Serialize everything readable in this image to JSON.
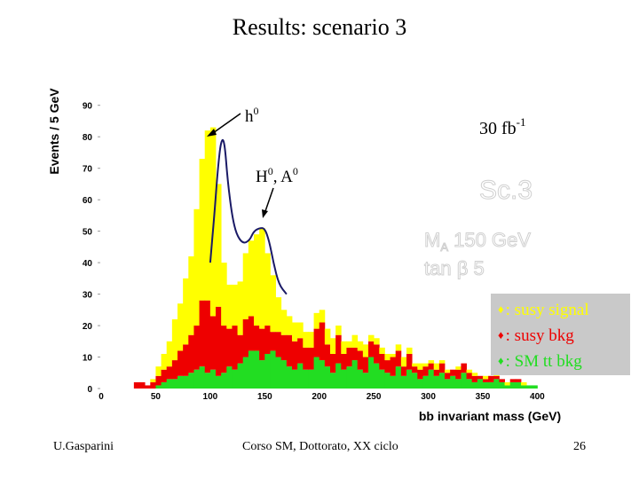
{
  "slide": {
    "title": "Results: scenario 3",
    "footer_left": "U.Gasparini",
    "footer_center": "Corso SM, Dottorato, XX ciclo",
    "page_number": "26"
  },
  "annotations": {
    "h0_label": "h",
    "h0_sup": "0",
    "heavy_label_a": "H",
    "heavy_sup_a": "0",
    "heavy_sep": ", A",
    "heavy_sup_b": "0",
    "lumi_label": "30 fb",
    "lumi_sup": "-1",
    "ghost_line1": "Sc.3",
    "ghost_line2a": "M",
    "ghost_line2a_sub": "A",
    "ghost_line2b": " 150 GeV",
    "ghost_line3a": "tan ",
    "ghost_line3b": "β",
    "ghost_line3c": "  5"
  },
  "legend": {
    "marker": "♦",
    "entries": [
      {
        "label": ": susy signal",
        "color": "#ffff00"
      },
      {
        "label": ": susy bkg",
        "color": "#ee0000"
      },
      {
        "label": ": SM tt bkg",
        "color": "#22dd22"
      }
    ]
  },
  "colors": {
    "signal": "#ffff00",
    "susy_bkg": "#ee0000",
    "sm_tt": "#22dd22",
    "fit_curve": "#1a1a66",
    "legend_bg": "#c9c9c9"
  },
  "chart_data": {
    "type": "bar",
    "stacked": true,
    "xlabel": "bb invariant mass (GeV)",
    "ylabel": "Events / 5 GeV",
    "xlim": [
      0,
      420
    ],
    "ylim": [
      0,
      95
    ],
    "x_ticks": [
      0,
      50,
      100,
      150,
      200,
      250,
      300,
      350,
      400
    ],
    "y_ticks": [
      0,
      10,
      20,
      30,
      40,
      50,
      60,
      70,
      80,
      90
    ],
    "bin_width": 5,
    "bin_lo_edges": [
      30,
      35,
      40,
      45,
      50,
      55,
      60,
      65,
      70,
      75,
      80,
      85,
      90,
      95,
      100,
      105,
      110,
      115,
      120,
      125,
      130,
      135,
      140,
      145,
      150,
      155,
      160,
      165,
      170,
      175,
      180,
      185,
      190,
      195,
      200,
      205,
      210,
      215,
      220,
      225,
      230,
      235,
      240,
      245,
      250,
      255,
      260,
      265,
      270,
      275,
      280,
      285,
      290,
      295,
      300,
      305,
      310,
      315,
      320,
      325,
      330,
      335,
      340,
      345,
      350,
      355,
      360,
      365,
      370,
      375,
      380,
      385,
      390,
      395
    ],
    "series": [
      {
        "name": "SM tt bkg",
        "values": [
          0,
          0,
          0,
          0,
          1,
          2,
          3,
          3,
          4,
          4,
          5,
          6,
          7,
          5,
          6,
          4,
          5,
          7,
          6,
          8,
          10,
          12,
          12,
          9,
          11,
          12,
          10,
          9,
          7,
          6,
          8,
          6,
          6,
          10,
          9,
          7,
          5,
          8,
          6,
          7,
          9,
          6,
          5,
          10,
          8,
          6,
          5,
          4,
          7,
          4,
          6,
          5,
          3,
          4,
          6,
          4,
          5,
          3,
          4,
          3,
          5,
          3,
          2,
          3,
          2,
          2,
          3,
          2,
          1,
          2,
          2,
          1,
          1,
          1
        ]
      },
      {
        "name": "susy bkg",
        "values": [
          2,
          2,
          1,
          2,
          3,
          4,
          4,
          6,
          8,
          10,
          12,
          14,
          21,
          23,
          17,
          22,
          15,
          12,
          14,
          9,
          12,
          11,
          8,
          10,
          9,
          6,
          8,
          8,
          10,
          9,
          8,
          7,
          7,
          9,
          12,
          7,
          6,
          9,
          5,
          6,
          4,
          6,
          5,
          5,
          6,
          5,
          4,
          6,
          5,
          3,
          5,
          2,
          3,
          3,
          2,
          2,
          3,
          2,
          2,
          3,
          3,
          2,
          2,
          1,
          1,
          2,
          1,
          1,
          0,
          1,
          1,
          0,
          0,
          0
        ]
      },
      {
        "name": "susy signal",
        "values": [
          0,
          0,
          0,
          1,
          3,
          5,
          8,
          13,
          15,
          21,
          25,
          37,
          45,
          54,
          60,
          39,
          20,
          14,
          13,
          17,
          21,
          24,
          29,
          32,
          23,
          18,
          11,
          8,
          6,
          6,
          5,
          5,
          5,
          5,
          4,
          5,
          5,
          3,
          4,
          2,
          4,
          3,
          4,
          2,
          2,
          2,
          2,
          1,
          2,
          3,
          2,
          1,
          2,
          1,
          1,
          2,
          1,
          1,
          0,
          1,
          0,
          1,
          1,
          0,
          1,
          0,
          1,
          0,
          1,
          0,
          0,
          1,
          0,
          0
        ]
      }
    ],
    "fit_curve": [
      [
        100,
        40
      ],
      [
        104,
        56
      ],
      [
        107,
        70
      ],
      [
        110,
        79
      ],
      [
        113,
        79
      ],
      [
        116,
        66
      ],
      [
        120,
        55
      ],
      [
        124,
        49
      ],
      [
        130,
        46
      ],
      [
        136,
        47
      ],
      [
        140,
        50
      ],
      [
        145,
        51
      ],
      [
        150,
        51
      ],
      [
        154,
        47
      ],
      [
        158,
        40
      ],
      [
        163,
        33
      ],
      [
        170,
        30
      ]
    ]
  }
}
